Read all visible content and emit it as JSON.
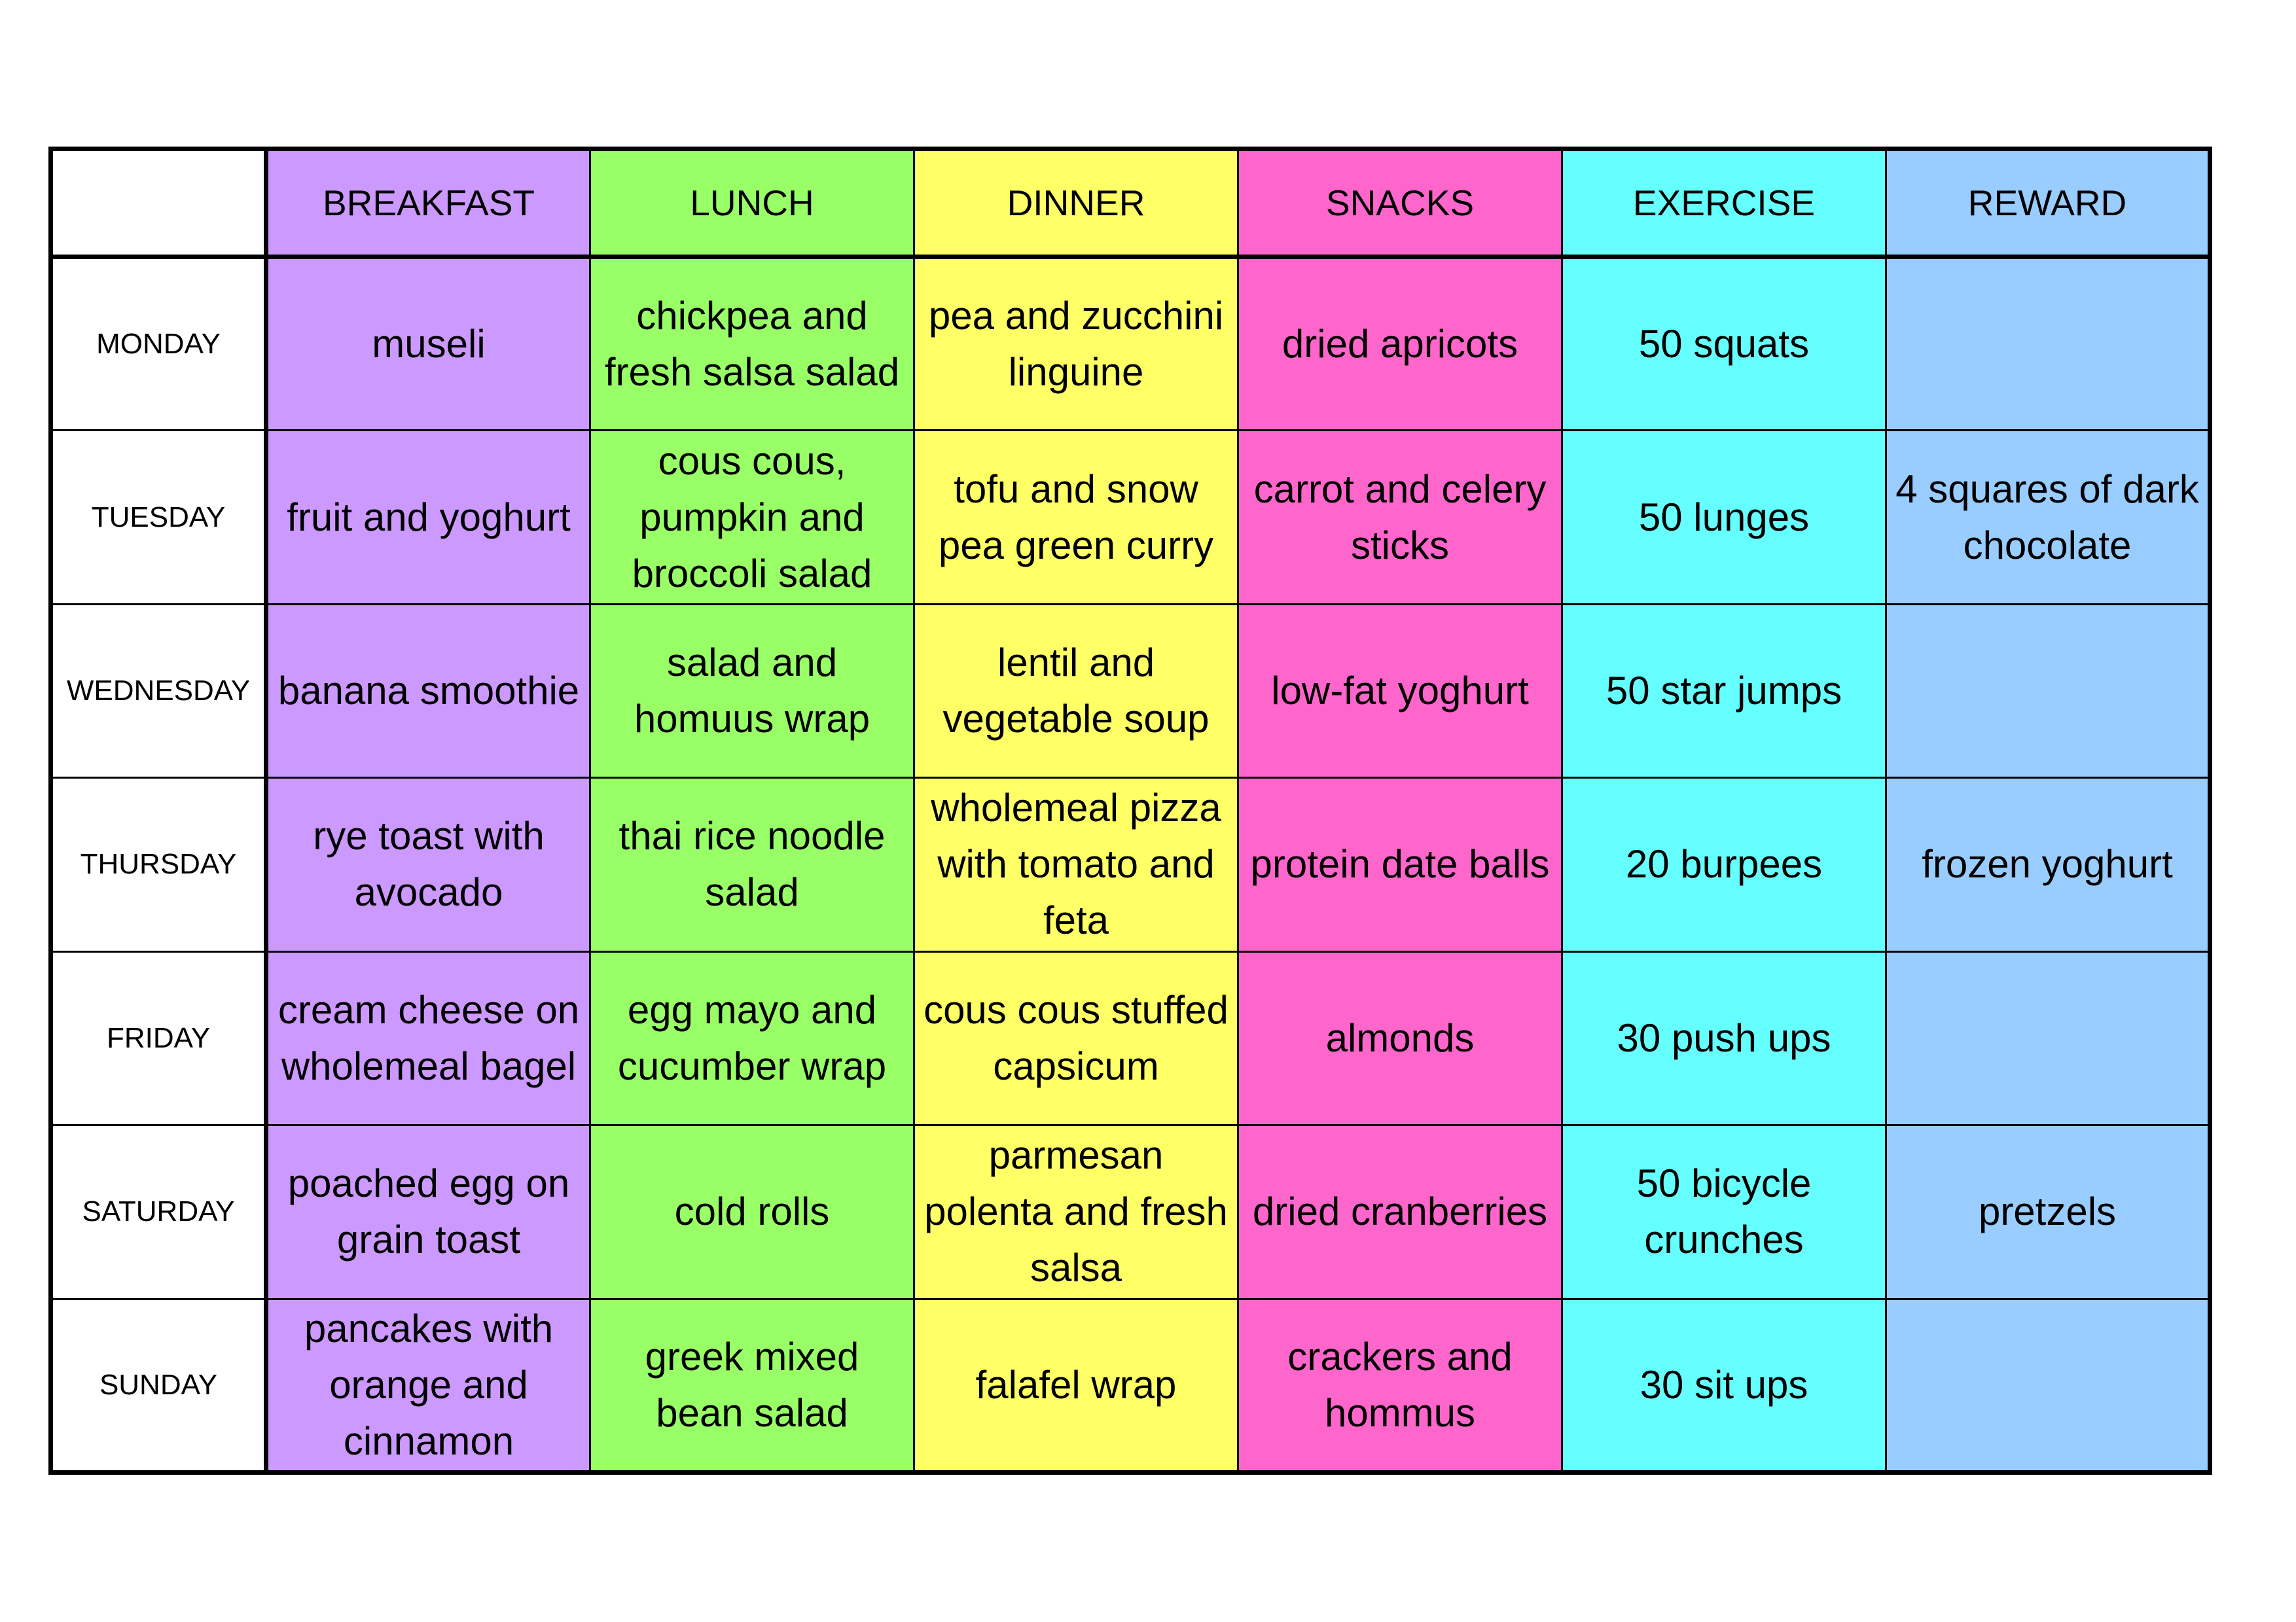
{
  "colors": {
    "breakfast": "#cc99ff",
    "lunch": "#99ff66",
    "dinner": "#ffff66",
    "snacks": "#ff66cc",
    "exercise": "#66ffff",
    "reward": "#99ccff"
  },
  "headers": {
    "corner": "",
    "breakfast": "BREAKFAST",
    "lunch": "LUNCH",
    "dinner": "DINNER",
    "snacks": "SNACKS",
    "exercise": "EXERCISE",
    "reward": "REWARD"
  },
  "rows": [
    {
      "day": "MONDAY",
      "breakfast": "museli",
      "lunch": "chickpea and fresh salsa salad",
      "dinner": "pea and zucchini linguine",
      "snacks": "dried apricots",
      "exercise": "50 squats",
      "reward": ""
    },
    {
      "day": "TUESDAY",
      "breakfast": "fruit and yoghurt",
      "lunch": "cous cous, pumpkin and broccoli salad",
      "dinner": "tofu and snow pea green curry",
      "snacks": "carrot and celery sticks",
      "exercise": "50 lunges",
      "reward": "4 squares of dark chocolate"
    },
    {
      "day": "WEDNESDAY",
      "breakfast": "banana smoothie",
      "lunch": "salad and homuus wrap",
      "dinner": "lentil and vegetable soup",
      "snacks": "low-fat yoghurt",
      "exercise": "50 star jumps",
      "reward": ""
    },
    {
      "day": "THURSDAY",
      "breakfast": "rye toast with avocado",
      "lunch": "thai rice noodle salad",
      "dinner": "wholemeal pizza with tomato and feta",
      "snacks": "protein date balls",
      "exercise": "20 burpees",
      "reward": "frozen yoghurt"
    },
    {
      "day": "FRIDAY",
      "breakfast": "cream cheese on wholemeal bagel",
      "lunch": "egg mayo and cucumber wrap",
      "dinner": "cous cous stuffed capsicum",
      "snacks": "almonds",
      "exercise": "30 push ups",
      "reward": ""
    },
    {
      "day": "SATURDAY",
      "breakfast": "poached egg on grain toast",
      "lunch": "cold rolls",
      "dinner": "parmesan polenta and fresh salsa",
      "snacks": "dried cranberries",
      "exercise": "50 bicycle crunches",
      "reward": "pretzels"
    },
    {
      "day": "SUNDAY",
      "breakfast": "pancakes with orange and cinnamon",
      "lunch": "greek mixed bean salad",
      "dinner": "falafel wrap",
      "snacks": "crackers and hommus",
      "exercise": "30 sit ups",
      "reward": ""
    }
  ]
}
